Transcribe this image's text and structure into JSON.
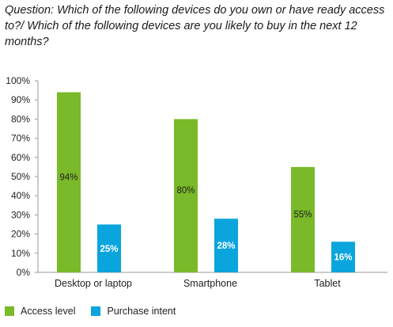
{
  "question": "Question: Which of the following devices do you own or have ready access to?/ Which of the following devices are you likely to buy in the next 12 months?",
  "colors": {
    "access": "#7ab929",
    "purchase": "#0aa5dd",
    "axis": "#999999"
  },
  "chart_data": {
    "type": "bar",
    "title": "Question: Which of the following devices do you own or have ready access to?/ Which of the following devices are you likely to buy in the next 12 months?",
    "categories": [
      "Desktop or laptop",
      "Smartphone",
      "Tablet"
    ],
    "series": [
      {
        "name": "Access level",
        "values": [
          94,
          80,
          55
        ],
        "labels": [
          "94%",
          "80%",
          "55%"
        ]
      },
      {
        "name": "Purchase intent",
        "values": [
          25,
          28,
          16
        ],
        "labels": [
          "25%",
          "28%",
          "16%"
        ]
      }
    ],
    "yticks": [
      "0%",
      "10%",
      "20%",
      "30%",
      "40%",
      "50%",
      "60%",
      "70%",
      "80%",
      "90%",
      "100%"
    ],
    "ylim": [
      0,
      100
    ],
    "grid": false,
    "legend": "bottom-left",
    "xlabel": "",
    "ylabel": ""
  }
}
